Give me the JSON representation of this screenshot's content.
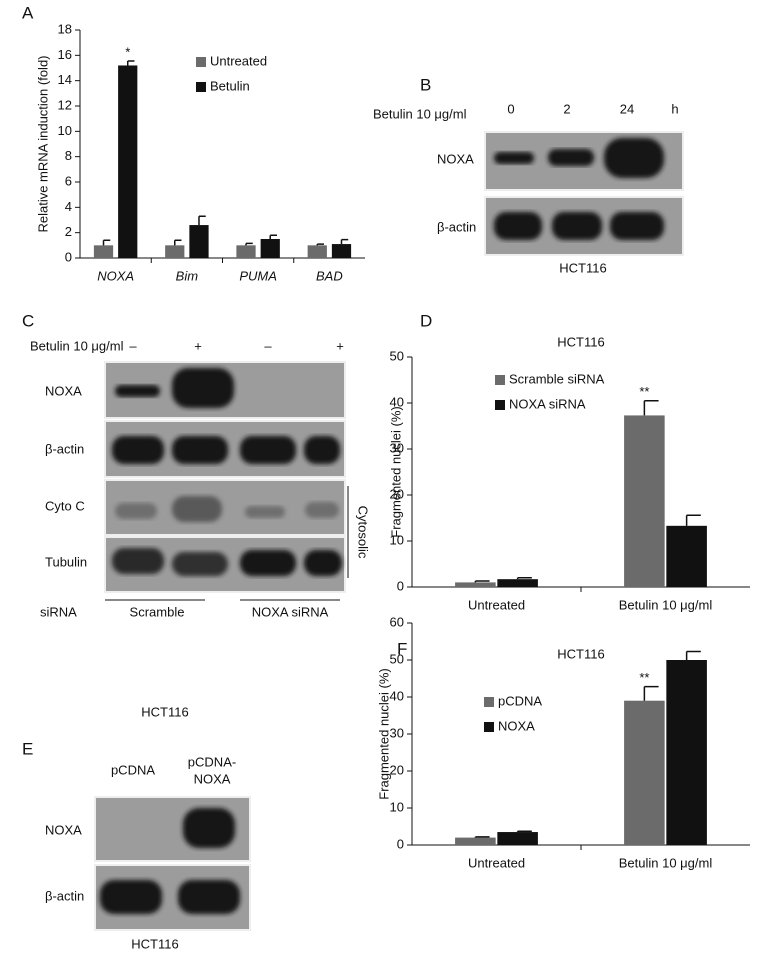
{
  "panels": {
    "a": "A",
    "b": "B",
    "c": "C",
    "d": "D",
    "e": "E",
    "f": "F"
  },
  "chart_data": [
    {
      "type": "bar",
      "y_label": "Relative mRNA induction (fold)",
      "categories": [
        "NOXA",
        "Bim",
        "PUMA",
        "BAD"
      ],
      "series": [
        {
          "name": "Untreated",
          "color": "#6b6b6b",
          "values": [
            1,
            1,
            1,
            1
          ],
          "errors": [
            0.4,
            0.4,
            0.15,
            0.1
          ]
        },
        {
          "name": "Betulin",
          "color": "#111111",
          "values": [
            15.2,
            2.6,
            1.5,
            1.1
          ],
          "errors": [
            0.35,
            0.7,
            0.3,
            0.35
          ]
        }
      ],
      "annotation": "*",
      "ylim": [
        0,
        18
      ],
      "yticks": [
        0,
        2,
        4,
        6,
        8,
        10,
        12,
        14,
        16,
        18
      ]
    },
    {
      "type": "bar",
      "title": "HCT116",
      "y_label": "Fragmented nuclei (%)",
      "categories": [
        "Untreated",
        "Betulin 10 μg/ml"
      ],
      "series": [
        {
          "name": "Scramble siRNA",
          "color": "#6b6b6b",
          "values": [
            1,
            37.3
          ],
          "errors": [
            0.3,
            3.2
          ]
        },
        {
          "name": "NOXA siRNA",
          "color": "#111111",
          "values": [
            1.7,
            13.3
          ],
          "errors": [
            0.3,
            2.3
          ]
        }
      ],
      "annotation": "**",
      "ylim": [
        0,
        50
      ],
      "yticks": [
        0,
        10,
        20,
        30,
        40,
        50
      ]
    },
    {
      "type": "bar",
      "title": "HCT116",
      "y_label": "Fragmented nuclei (%)",
      "categories": [
        "Untreated",
        "Betulin 10 μg/ml"
      ],
      "series": [
        {
          "name": "pCDNA",
          "color": "#6b6b6b",
          "values": [
            2,
            39
          ],
          "errors": [
            0.2,
            3.8
          ]
        },
        {
          "name": "NOXA",
          "color": "#111111",
          "values": [
            3.5,
            50
          ],
          "errors": [
            0.2,
            2.3
          ]
        }
      ],
      "annotation": "**",
      "ylim": [
        0,
        60
      ],
      "yticks": [
        0,
        10,
        20,
        30,
        40,
        50,
        60
      ]
    }
  ],
  "blot_b": {
    "treatment": "Betulin 10 μg/ml",
    "lanes": [
      "0",
      "2",
      "24"
    ],
    "unit": "h",
    "rows": [
      "NOXA",
      "β-actin"
    ],
    "cell_line": "HCT116"
  },
  "blot_c": {
    "treatment": "Betulin 10 μg/ml",
    "lanes": [
      "–",
      "+",
      "–",
      "+"
    ],
    "rows": [
      "NOXA",
      "β-actin",
      "Cyto C",
      "Tubulin"
    ],
    "fraction": "Cytosolic",
    "sirna_label": "siRNA",
    "groups": [
      "Scramble",
      "NOXA siRNA"
    ]
  },
  "blot_e": {
    "title": "HCT116",
    "lanes": [
      "pCDNA",
      "pCDNA-",
      "NOXA"
    ],
    "rows": [
      "NOXA",
      "β-actin"
    ],
    "cell_line": "HCT116"
  }
}
